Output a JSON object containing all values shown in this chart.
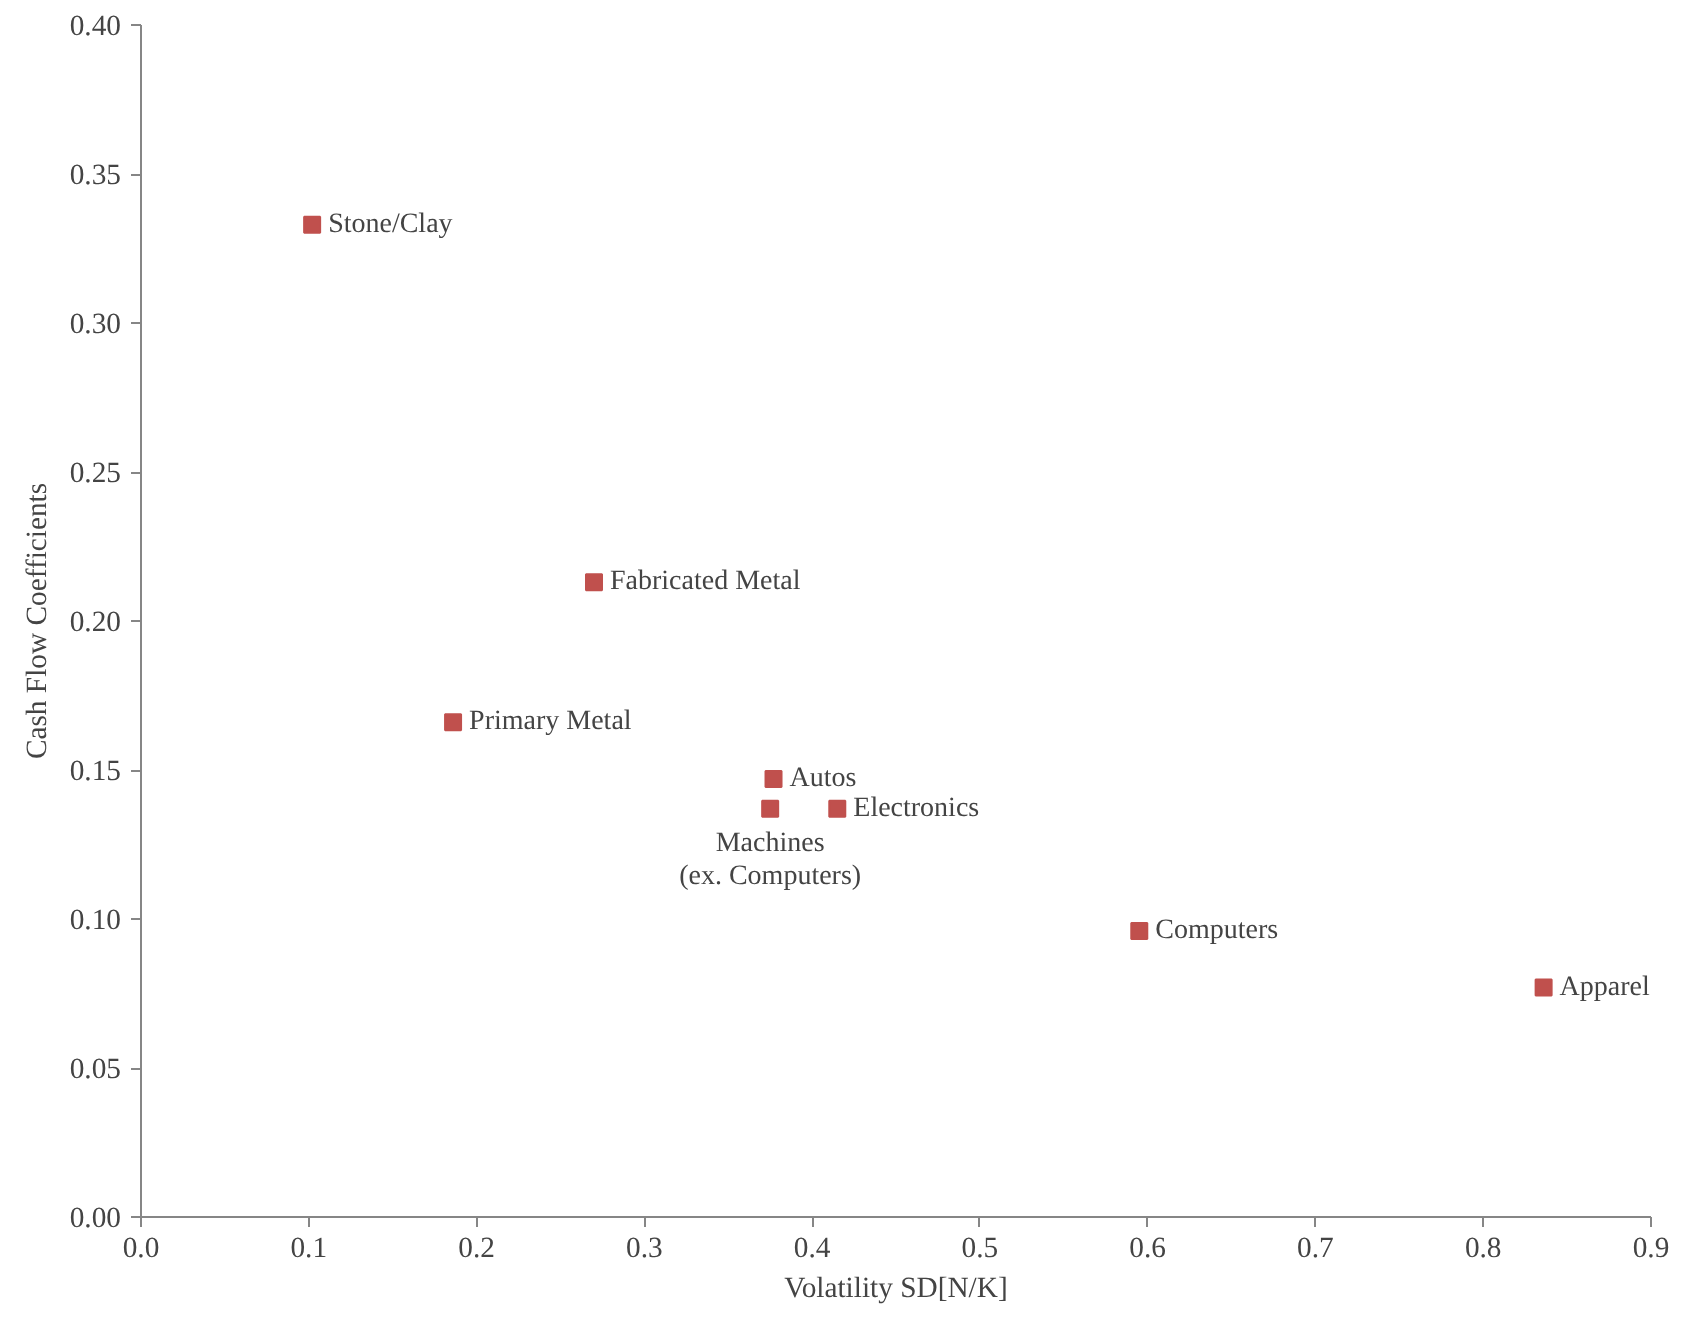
{
  "chart_data": {
    "type": "scatter",
    "xlabel": "Volatility SD[N/K]",
    "ylabel": "Cash Flow Coefficients",
    "x": [
      0.102,
      0.27,
      0.186,
      0.377,
      0.375,
      0.415,
      0.595,
      0.836
    ],
    "series": [
      {
        "color": "#c0504d",
        "values": [
          0.333,
          0.213,
          0.166,
          0.147,
          0.137,
          0.137,
          0.096,
          0.077
        ]
      }
    ],
    "marker": "square",
    "grid": false,
    "xlim": [
      0,
      0.9
    ],
    "xticks": [
      {
        "value": 0,
        "label": "0.0"
      },
      {
        "value": 0.1,
        "label": "0.1"
      },
      {
        "value": 0.2,
        "label": "0.2"
      },
      {
        "value": 0.3,
        "label": "0.3"
      },
      {
        "value": 0.4,
        "label": "0.4"
      },
      {
        "value": 0.5,
        "label": "0.5"
      },
      {
        "value": 0.6,
        "label": "0.6"
      },
      {
        "value": 0.7,
        "label": "0.7"
      },
      {
        "value": 0.8,
        "label": "0.8"
      },
      {
        "value": 0.9,
        "label": "0.9"
      }
    ],
    "ylim": [
      0,
      0.4
    ],
    "yticks": [
      {
        "value": 0,
        "label": "0.00"
      },
      {
        "value": 0.05,
        "label": "0.05"
      },
      {
        "value": 0.1,
        "label": "0.10"
      },
      {
        "value": 0.15,
        "label": "0.15"
      },
      {
        "value": 0.2,
        "label": "0.20"
      },
      {
        "value": 0.25,
        "label": "0.25"
      },
      {
        "value": 0.3,
        "label": "0.30"
      },
      {
        "value": 0.35,
        "label": "0.35"
      },
      {
        "value": 0.4,
        "label": "0.40"
      }
    ],
    "annotations": [
      {
        "text": "Stone/Clay",
        "x": 0.102,
        "y": 0.333
      },
      {
        "text": "Fabricated Metal",
        "x": 0.27,
        "y": 0.213
      },
      {
        "text": "Primary Metal",
        "x": 0.186,
        "y": 0.166
      },
      {
        "text": "Autos",
        "x": 0.377,
        "y": 0.147
      },
      {
        "text": "Machines\n(ex. Computers)",
        "x": 0.375,
        "y": 0.137
      },
      {
        "text": "Electronics",
        "x": 0.415,
        "y": 0.137
      },
      {
        "text": "Computers",
        "x": 0.595,
        "y": 0.096
      },
      {
        "text": "Apparel",
        "x": 0.836,
        "y": 0.077
      }
    ]
  }
}
